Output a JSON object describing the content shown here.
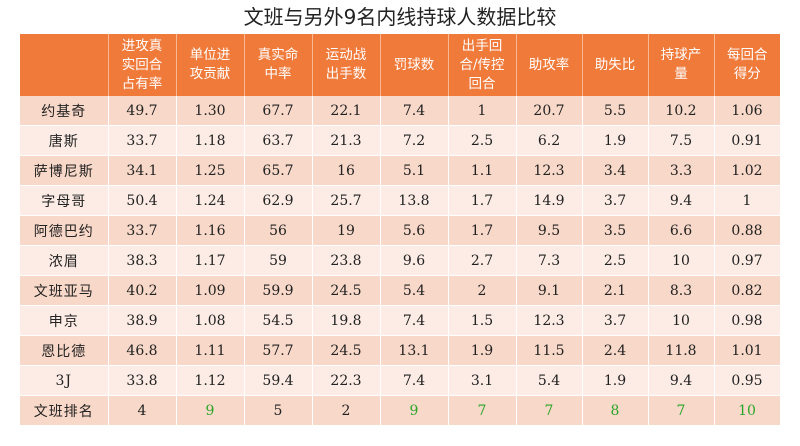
{
  "chart_data": {
    "type": "table",
    "title": "文班与另外9名内线持球人数据比较",
    "columns": [
      "",
      "进攻真\n实回合\n占有率",
      "单位进\n攻贡献",
      "真实命\n中率",
      "运动战\n出手数",
      "罚球数",
      "出手回\n合/传控\n回合",
      "助攻率",
      "助失比",
      "持球产\n量",
      "每回合\n得分"
    ],
    "rows": [
      {
        "name": "约基奇",
        "values": [
          "49.7",
          "1.30",
          "67.7",
          "22.1",
          "7.4",
          "1",
          "20.7",
          "5.5",
          "10.2",
          "1.06"
        ]
      },
      {
        "name": "唐斯",
        "values": [
          "33.7",
          "1.18",
          "63.7",
          "21.3",
          "7.2",
          "2.5",
          "6.2",
          "1.9",
          "7.5",
          "0.91"
        ]
      },
      {
        "name": "萨博尼斯",
        "values": [
          "34.1",
          "1.25",
          "65.7",
          "16",
          "5.1",
          "1.1",
          "12.3",
          "3.4",
          "3.3",
          "1.02"
        ]
      },
      {
        "name": "字母哥",
        "values": [
          "50.4",
          "1.24",
          "62.9",
          "25.7",
          "13.8",
          "1.7",
          "14.9",
          "3.7",
          "9.4",
          "1"
        ]
      },
      {
        "name": "阿德巴约",
        "values": [
          "33.7",
          "1.16",
          "56",
          "19",
          "5.6",
          "1.7",
          "9.5",
          "3.5",
          "6.6",
          "0.88"
        ]
      },
      {
        "name": "浓眉",
        "values": [
          "38.3",
          "1.17",
          "59",
          "23.8",
          "9.6",
          "2.7",
          "7.3",
          "2.5",
          "10",
          "0.97"
        ]
      },
      {
        "name": "文班亚马",
        "values": [
          "40.2",
          "1.09",
          "59.9",
          "24.5",
          "5.4",
          "2",
          "9.1",
          "2.1",
          "8.3",
          "0.82"
        ]
      },
      {
        "name": "申京",
        "values": [
          "38.9",
          "1.08",
          "54.5",
          "19.8",
          "7.4",
          "1.5",
          "12.3",
          "3.7",
          "10",
          "0.98"
        ]
      },
      {
        "name": "恩比德",
        "values": [
          "46.8",
          "1.11",
          "57.7",
          "24.5",
          "13.1",
          "1.9",
          "11.5",
          "2.4",
          "11.8",
          "1.01"
        ]
      },
      {
        "name": "3J",
        "values": [
          "33.8",
          "1.12",
          "59.4",
          "22.3",
          "7.4",
          "3.1",
          "5.4",
          "1.9",
          "9.4",
          "0.95"
        ]
      },
      {
        "name": "文班排名",
        "values": [
          "4",
          "9",
          "5",
          "2",
          "9",
          "7",
          "7",
          "8",
          "7",
          "10"
        ]
      }
    ],
    "colors": {
      "header_bg": "#f07a3a",
      "header_text": "#ffffff",
      "row_odd": "#f8d8c8",
      "row_even": "#fcece5",
      "rank_highlight": "#2aa52a"
    }
  }
}
